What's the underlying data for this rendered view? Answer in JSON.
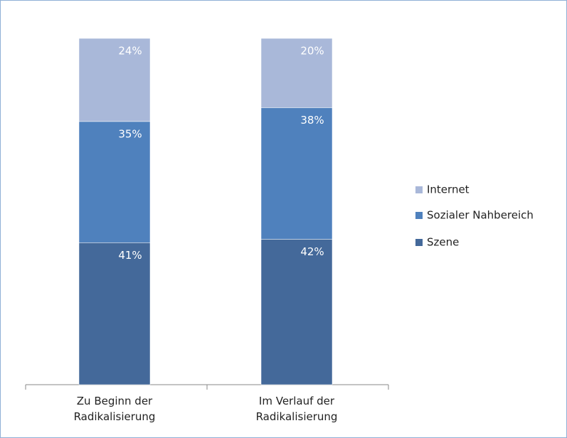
{
  "chart_data": {
    "type": "stacked_bar",
    "categories": [
      "Zu Beginn der Radikalisierung",
      "Im Verlauf der Radikalisierung"
    ],
    "ylim": [
      0,
      100
    ],
    "series": [
      {
        "name": "Szene",
        "color": "#44699a",
        "values": [
          41,
          42
        ],
        "value_labels": [
          "41%",
          "42%"
        ]
      },
      {
        "name": "Sozialer Nahbereich",
        "color": "#4f81bd",
        "values": [
          35,
          38
        ],
        "value_labels": [
          "35%",
          "38%"
        ]
      },
      {
        "name": "Internet",
        "color": "#a9b8d9",
        "values": [
          24,
          20
        ],
        "value_labels": [
          "24%",
          "20%"
        ]
      }
    ]
  }
}
